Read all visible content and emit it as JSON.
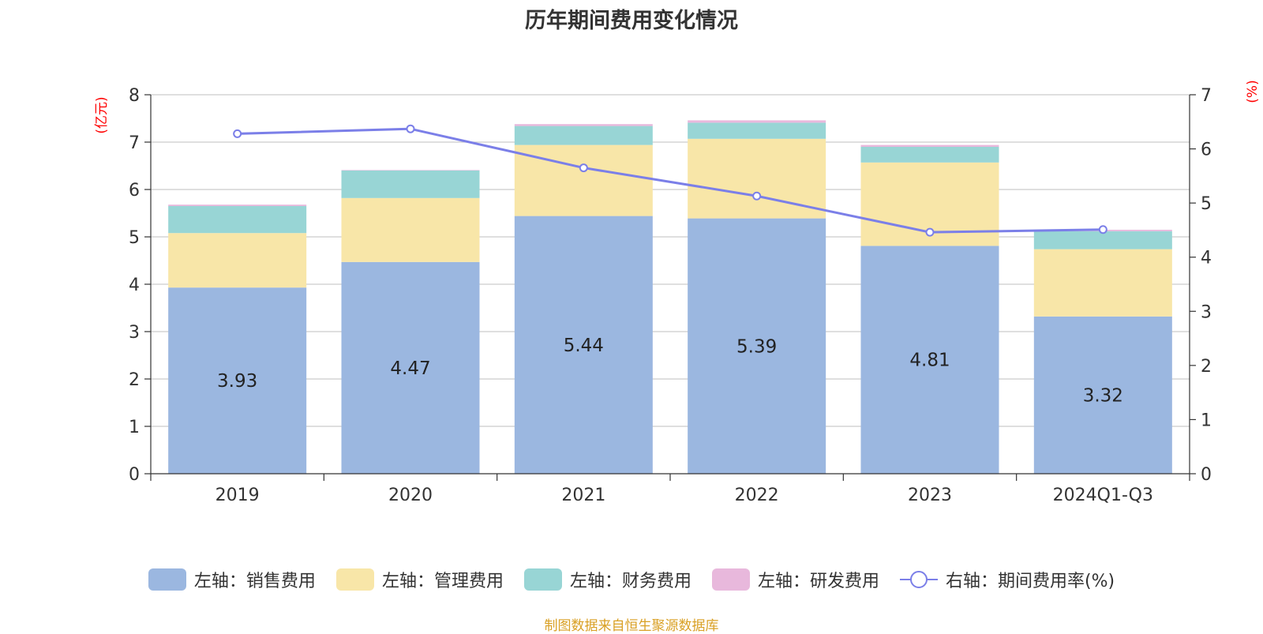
{
  "chart_data": {
    "type": "bar",
    "title": "历年期间费用变化情况",
    "categories": [
      "2019",
      "2020",
      "2021",
      "2022",
      "2023",
      "2024Q1-Q3"
    ],
    "left_axis": {
      "unit": "(亿元)",
      "ylim": [
        0,
        8
      ],
      "ticks": [
        "0",
        "1",
        "2",
        "3",
        "4",
        "5",
        "6",
        "7",
        "8"
      ]
    },
    "right_axis": {
      "unit": "(%)",
      "ylim": [
        0,
        7
      ],
      "ticks": [
        "0",
        "1",
        "2",
        "3",
        "4",
        "5",
        "6",
        "7"
      ]
    },
    "series": [
      {
        "name": "左轴：销售费用",
        "kind": "bar",
        "axis": "left",
        "color": "#9bb7e0",
        "values": [
          3.93,
          4.47,
          5.44,
          5.39,
          4.81,
          3.32
        ],
        "labels": [
          "3.93",
          "4.47",
          "5.44",
          "5.39",
          "4.81",
          "3.32"
        ]
      },
      {
        "name": "左轴：管理费用",
        "kind": "bar",
        "axis": "left",
        "color": "#f8e6a8",
        "values": [
          1.15,
          1.35,
          1.5,
          1.68,
          1.76,
          1.42
        ]
      },
      {
        "name": "左轴：财务费用",
        "kind": "bar",
        "axis": "left",
        "color": "#98d5d5",
        "values": [
          0.57,
          0.58,
          0.4,
          0.34,
          0.33,
          0.38
        ]
      },
      {
        "name": "左轴：研发费用",
        "kind": "bar",
        "axis": "left",
        "color": "#e8b8dc",
        "values": [
          0.03,
          0.01,
          0.04,
          0.05,
          0.04,
          0.03
        ]
      },
      {
        "name": "右轴：期间费用率(%)",
        "kind": "line",
        "axis": "right",
        "color": "#7b7fe8",
        "values": [
          6.28,
          6.37,
          5.65,
          5.13,
          4.46,
          4.51
        ]
      }
    ]
  },
  "source_note": "制图数据来自恒生聚源数据库"
}
